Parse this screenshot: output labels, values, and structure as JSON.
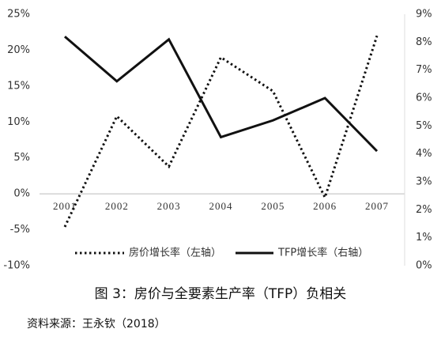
{
  "chart_data": {
    "type": "line",
    "title": "图 3：房价与全要素生产率（TFP）负相关",
    "source": "资料来源：王永钦（2018）",
    "categories": [
      "2001",
      "2002",
      "2003",
      "2004",
      "2005",
      "2006",
      "2007"
    ],
    "series": [
      {
        "name": "房价增长率（左轴）",
        "color": "#111111",
        "dash": "dotted",
        "values": [
          -4.6,
          10.8,
          3.8,
          19,
          14.3,
          -0.5,
          22
        ]
      },
      {
        "name": "TFP增长率（右轴）",
        "color": "#111111",
        "dash": "solid",
        "axis": "y2",
        "values": [
          8.2,
          6.6,
          8.1,
          4.6,
          5.2,
          6.0,
          4.1
        ]
      }
    ],
    "ylim": [
      -10,
      25
    ],
    "yticks": [
      {
        "value": -10,
        "label": "-10%"
      },
      {
        "value": -5,
        "label": "-5%"
      },
      {
        "value": 0,
        "label": "0%"
      },
      {
        "value": 5,
        "label": "5%"
      },
      {
        "value": 10,
        "label": "10%"
      },
      {
        "value": 15,
        "label": "15%"
      },
      {
        "value": 20,
        "label": "20%"
      },
      {
        "value": 25,
        "label": "25%"
      }
    ],
    "y2lim": [
      0,
      9
    ],
    "y2ticks": [
      {
        "value": 0,
        "label": "0%"
      },
      {
        "value": 1,
        "label": "1%"
      },
      {
        "value": 2,
        "label": "2%"
      },
      {
        "value": 3,
        "label": "3%"
      },
      {
        "value": 4,
        "label": "4%"
      },
      {
        "value": 5,
        "label": "5%"
      },
      {
        "value": 6,
        "label": "6%"
      },
      {
        "value": 7,
        "label": "7%"
      },
      {
        "value": 8,
        "label": "8%"
      },
      {
        "value": 9,
        "label": "9%"
      }
    ]
  }
}
